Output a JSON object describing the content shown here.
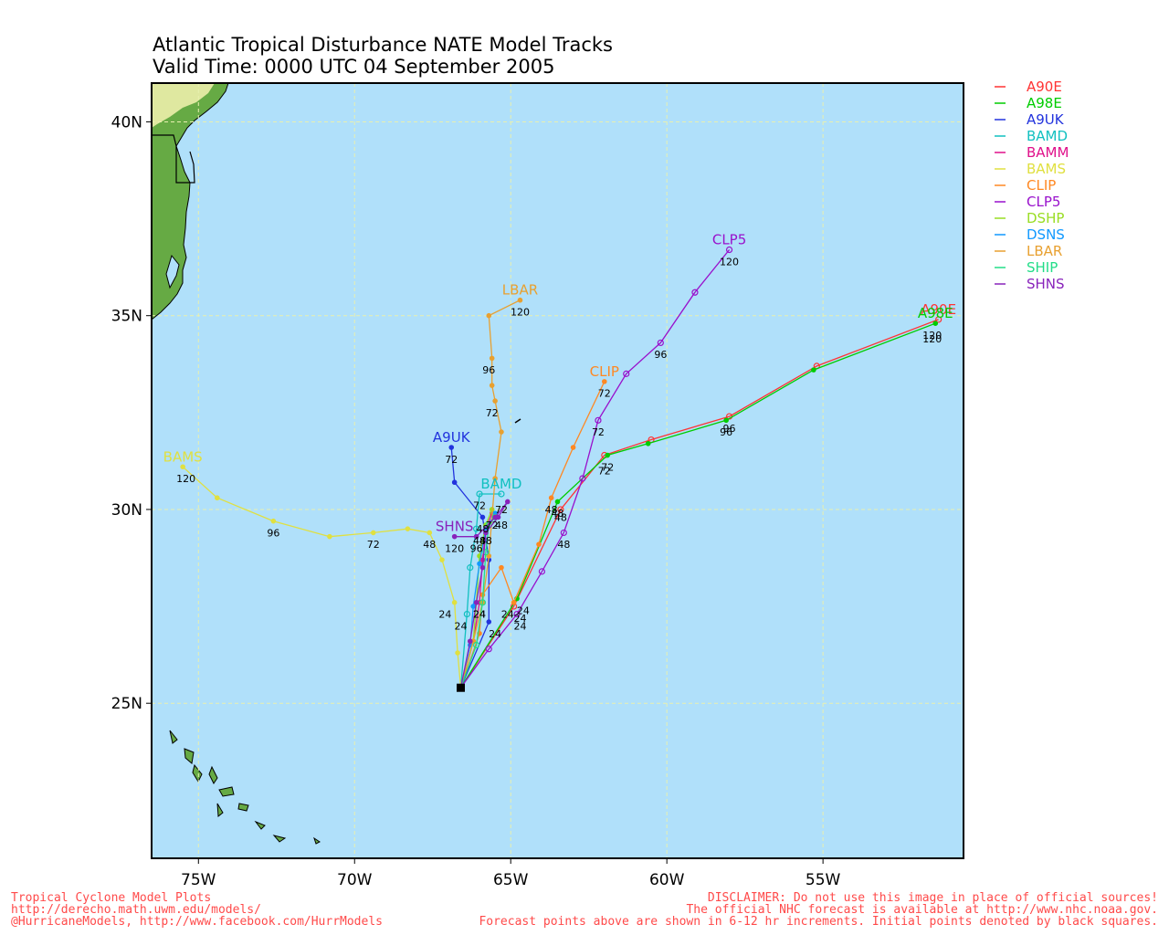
{
  "title": {
    "line1": "Atlantic Tropical Disturbance NATE Model Tracks",
    "line2": "Valid Time: 0000 UTC 04 September 2005"
  },
  "map": {
    "lon_range": [
      -76.5,
      -50.5
    ],
    "lat_range": [
      21,
      41
    ],
    "ocean_color": "#b0e0fa",
    "land_color": "#66aa44",
    "grid": true,
    "x_ticks": [
      {
        "value": -75,
        "label": "75W"
      },
      {
        "value": -70,
        "label": "70W"
      },
      {
        "value": -65,
        "label": "65W"
      },
      {
        "value": -60,
        "label": "60W"
      },
      {
        "value": -55,
        "label": "55W"
      }
    ],
    "y_ticks": [
      {
        "value": 25,
        "label": "25N"
      },
      {
        "value": 30,
        "label": "30N"
      },
      {
        "value": 35,
        "label": "35N"
      },
      {
        "value": 40,
        "label": "40N"
      }
    ]
  },
  "initial_point": {
    "lon": -66.6,
    "lat": 25.4
  },
  "chart_data": {
    "type": "line",
    "legend_placement": "right",
    "series": [
      {
        "name": "A90E",
        "color": "#ff3333",
        "hollow": true,
        "points": [
          [
            -66.6,
            25.4
          ],
          [
            -64.9,
            27.5
          ],
          [
            -63.4,
            30.0
          ],
          [
            -62.0,
            31.4
          ],
          [
            -60.5,
            31.8
          ],
          [
            -58.0,
            32.4
          ],
          [
            -55.2,
            33.7
          ],
          [
            -51.3,
            34.9
          ]
        ],
        "hour_labels": [
          [
            -64.7,
            27.2,
            "24"
          ],
          [
            -63.4,
            29.8,
            "48"
          ],
          [
            -62.0,
            31.0,
            "72"
          ],
          [
            -58.0,
            32.1,
            "96"
          ],
          [
            -51.5,
            34.4,
            "120"
          ]
        ],
        "end_label": "A90E"
      },
      {
        "name": "A98E",
        "color": "#00cc00",
        "hollow": false,
        "points": [
          [
            -66.6,
            25.4
          ],
          [
            -64.8,
            27.7
          ],
          [
            -63.5,
            30.2
          ],
          [
            -61.9,
            31.4
          ],
          [
            -60.6,
            31.7
          ],
          [
            -58.1,
            32.3
          ],
          [
            -55.3,
            33.6
          ],
          [
            -51.4,
            34.8
          ]
        ],
        "hour_labels": [
          [
            -64.6,
            27.4,
            "24"
          ],
          [
            -63.5,
            29.9,
            "48"
          ],
          [
            -61.9,
            31.1,
            "72"
          ],
          [
            -58.1,
            32.0,
            "96"
          ],
          [
            -51.5,
            34.5,
            "120"
          ]
        ],
        "end_label": "A98E"
      },
      {
        "name": "A9UK",
        "color": "#2233dd",
        "hollow": false,
        "points": [
          [
            -66.6,
            25.4
          ],
          [
            -65.7,
            27.1
          ],
          [
            -65.7,
            28.7
          ],
          [
            -65.9,
            29.8
          ],
          [
            -66.8,
            30.7
          ],
          [
            -66.9,
            31.6
          ]
        ],
        "hour_labels": [
          [
            -65.5,
            26.8,
            "24"
          ],
          [
            -65.9,
            29.5,
            "48"
          ],
          [
            -66.9,
            31.3,
            "72"
          ]
        ],
        "end_label": "A9UK"
      },
      {
        "name": "BAMD",
        "color": "#11c0c0",
        "hollow": true,
        "points": [
          [
            -66.6,
            25.4
          ],
          [
            -66.4,
            27.3
          ],
          [
            -66.3,
            28.5
          ],
          [
            -66.1,
            29.5
          ],
          [
            -66.0,
            30.4
          ],
          [
            -65.3,
            30.4
          ]
        ],
        "hour_labels": [
          [
            -66.6,
            27.0,
            "24"
          ],
          [
            -66.0,
            29.2,
            "48"
          ],
          [
            -66.0,
            30.1,
            "72"
          ]
        ],
        "end_label": "BAMD"
      },
      {
        "name": "BAMM",
        "color": "#e0108a",
        "hollow": false,
        "points": [
          [
            -66.6,
            25.4
          ],
          [
            -66.2,
            26.6
          ],
          [
            -66.0,
            27.6
          ],
          [
            -65.9,
            28.7
          ],
          [
            -65.8,
            29.5
          ],
          [
            -65.6,
            29.9
          ]
        ],
        "hour_labels": [
          [
            -66.0,
            27.3,
            "24"
          ],
          [
            -65.8,
            29.2,
            "48"
          ],
          [
            -65.6,
            29.6,
            "72"
          ]
        ],
        "end_label": ""
      },
      {
        "name": "BAMS",
        "color": "#e0e040",
        "hollow": false,
        "points": [
          [
            -66.6,
            25.4
          ],
          [
            -66.7,
            26.3
          ],
          [
            -66.8,
            27.6
          ],
          [
            -67.2,
            28.7
          ],
          [
            -67.6,
            29.4
          ],
          [
            -68.3,
            29.5
          ],
          [
            -69.4,
            29.4
          ],
          [
            -70.8,
            29.3
          ],
          [
            -72.6,
            29.7
          ],
          [
            -74.4,
            30.3
          ],
          [
            -75.5,
            31.1
          ]
        ],
        "hour_labels": [
          [
            -67.1,
            27.3,
            "24"
          ],
          [
            -67.6,
            29.1,
            "48"
          ],
          [
            -69.4,
            29.1,
            "72"
          ],
          [
            -72.6,
            29.4,
            "96"
          ],
          [
            -75.4,
            30.8,
            "120"
          ]
        ],
        "end_label": "BAMS"
      },
      {
        "name": "CLIP",
        "color": "#ff8822",
        "hollow": false,
        "points": [
          [
            -66.6,
            25.4
          ],
          [
            -66.0,
            26.8
          ],
          [
            -65.9,
            27.8
          ],
          [
            -65.3,
            28.5
          ],
          [
            -64.9,
            27.6
          ],
          [
            -64.1,
            29.1
          ],
          [
            -63.7,
            30.3
          ],
          [
            -63.0,
            31.6
          ],
          [
            -62.0,
            33.3
          ]
        ],
        "hour_labels": [
          [
            -65.1,
            27.3,
            "24"
          ],
          [
            -63.7,
            30.0,
            "48"
          ],
          [
            -62.0,
            33.0,
            "72"
          ]
        ],
        "end_label": "CLIP"
      },
      {
        "name": "CLP5",
        "color": "#9911cc",
        "hollow": true,
        "points": [
          [
            -66.6,
            25.4
          ],
          [
            -65.7,
            26.4
          ],
          [
            -64.8,
            27.3
          ],
          [
            -64.0,
            28.4
          ],
          [
            -63.3,
            29.4
          ],
          [
            -62.7,
            30.8
          ],
          [
            -62.2,
            32.3
          ],
          [
            -61.3,
            33.5
          ],
          [
            -60.2,
            34.3
          ],
          [
            -59.1,
            35.6
          ],
          [
            -58.0,
            36.7
          ]
        ],
        "hour_labels": [
          [
            -64.7,
            27.0,
            "24"
          ],
          [
            -63.3,
            29.1,
            "48"
          ],
          [
            -62.2,
            32.0,
            "72"
          ],
          [
            -60.2,
            34.0,
            "96"
          ],
          [
            -58.0,
            36.4,
            "120"
          ]
        ],
        "end_label": "CLP5"
      },
      {
        "name": "DSHP",
        "color": "#99dd22",
        "hollow": false,
        "points": [
          [
            -66.6,
            25.4
          ],
          [
            -66.2,
            26.6
          ],
          [
            -66.1,
            27.6
          ],
          [
            -66.0,
            28.8
          ],
          [
            -65.8,
            29.6
          ],
          [
            -65.6,
            30.0
          ]
        ],
        "hour_labels": [],
        "end_label": ""
      },
      {
        "name": "DSNS",
        "color": "#1199ff",
        "hollow": false,
        "points": [
          [
            -66.6,
            25.4
          ],
          [
            -66.3,
            26.5
          ],
          [
            -66.2,
            27.5
          ],
          [
            -66.0,
            28.6
          ],
          [
            -65.8,
            29.5
          ],
          [
            -65.5,
            29.9
          ]
        ],
        "hour_labels": [],
        "end_label": ""
      },
      {
        "name": "LBAR",
        "color": "#e8a030",
        "hollow": false,
        "points": [
          [
            -66.6,
            25.4
          ],
          [
            -66.2,
            26.6
          ],
          [
            -65.9,
            27.6
          ],
          [
            -65.7,
            28.8
          ],
          [
            -65.5,
            30.8
          ],
          [
            -65.3,
            32.0
          ],
          [
            -65.5,
            32.8
          ],
          [
            -65.6,
            33.2
          ],
          [
            -65.6,
            33.9
          ],
          [
            -65.7,
            35.0
          ],
          [
            -64.7,
            35.4
          ]
        ],
        "hour_labels": [
          [
            -65.6,
            32.5,
            "72"
          ],
          [
            -65.7,
            33.6,
            "96"
          ],
          [
            -64.7,
            35.1,
            "120"
          ]
        ],
        "end_label": "LBAR"
      },
      {
        "name": "SHIP",
        "color": "#22dd88",
        "hollow": true,
        "points": [
          [
            -66.6,
            25.4
          ],
          [
            -66.1,
            26.5
          ],
          [
            -65.9,
            27.6
          ],
          [
            -65.8,
            28.9
          ],
          [
            -65.7,
            29.6
          ],
          [
            -65.5,
            29.8
          ]
        ],
        "hour_labels": [],
        "end_label": ""
      },
      {
        "name": "SHNS",
        "color": "#8822bb",
        "hollow": false,
        "points": [
          [
            -66.6,
            25.4
          ],
          [
            -66.3,
            26.6
          ],
          [
            -66.1,
            27.6
          ],
          [
            -65.9,
            28.5
          ],
          [
            -65.8,
            29.4
          ],
          [
            -65.4,
            29.8
          ],
          [
            -65.1,
            30.2
          ],
          [
            -65.5,
            29.8
          ],
          [
            -66.1,
            29.3
          ],
          [
            -66.8,
            29.3
          ]
        ],
        "hour_labels": [
          [
            -66.0,
            27.3,
            "24"
          ],
          [
            -65.3,
            29.6,
            "48"
          ],
          [
            -65.3,
            30.0,
            "72"
          ],
          [
            -66.1,
            29.0,
            "96"
          ],
          [
            -66.8,
            29.0,
            "120"
          ]
        ],
        "end_label": "SHNS"
      }
    ]
  },
  "footer": {
    "left_line1": "Tropical Cyclone Model Plots",
    "left_line2": "http://derecho.math.uwm.edu/models/",
    "left_line3": "@HurricaneModels, http://www.facebook.com/HurrModels",
    "right_line1": "DISCLAIMER: Do not use this image in place of official sources!",
    "right_line2": "The official NHC forecast is available at http://www.nhc.noaa.gov.",
    "right_line3": "Forecast points above are shown in 6-12 hr increments. Initial points denoted by black squares."
  }
}
